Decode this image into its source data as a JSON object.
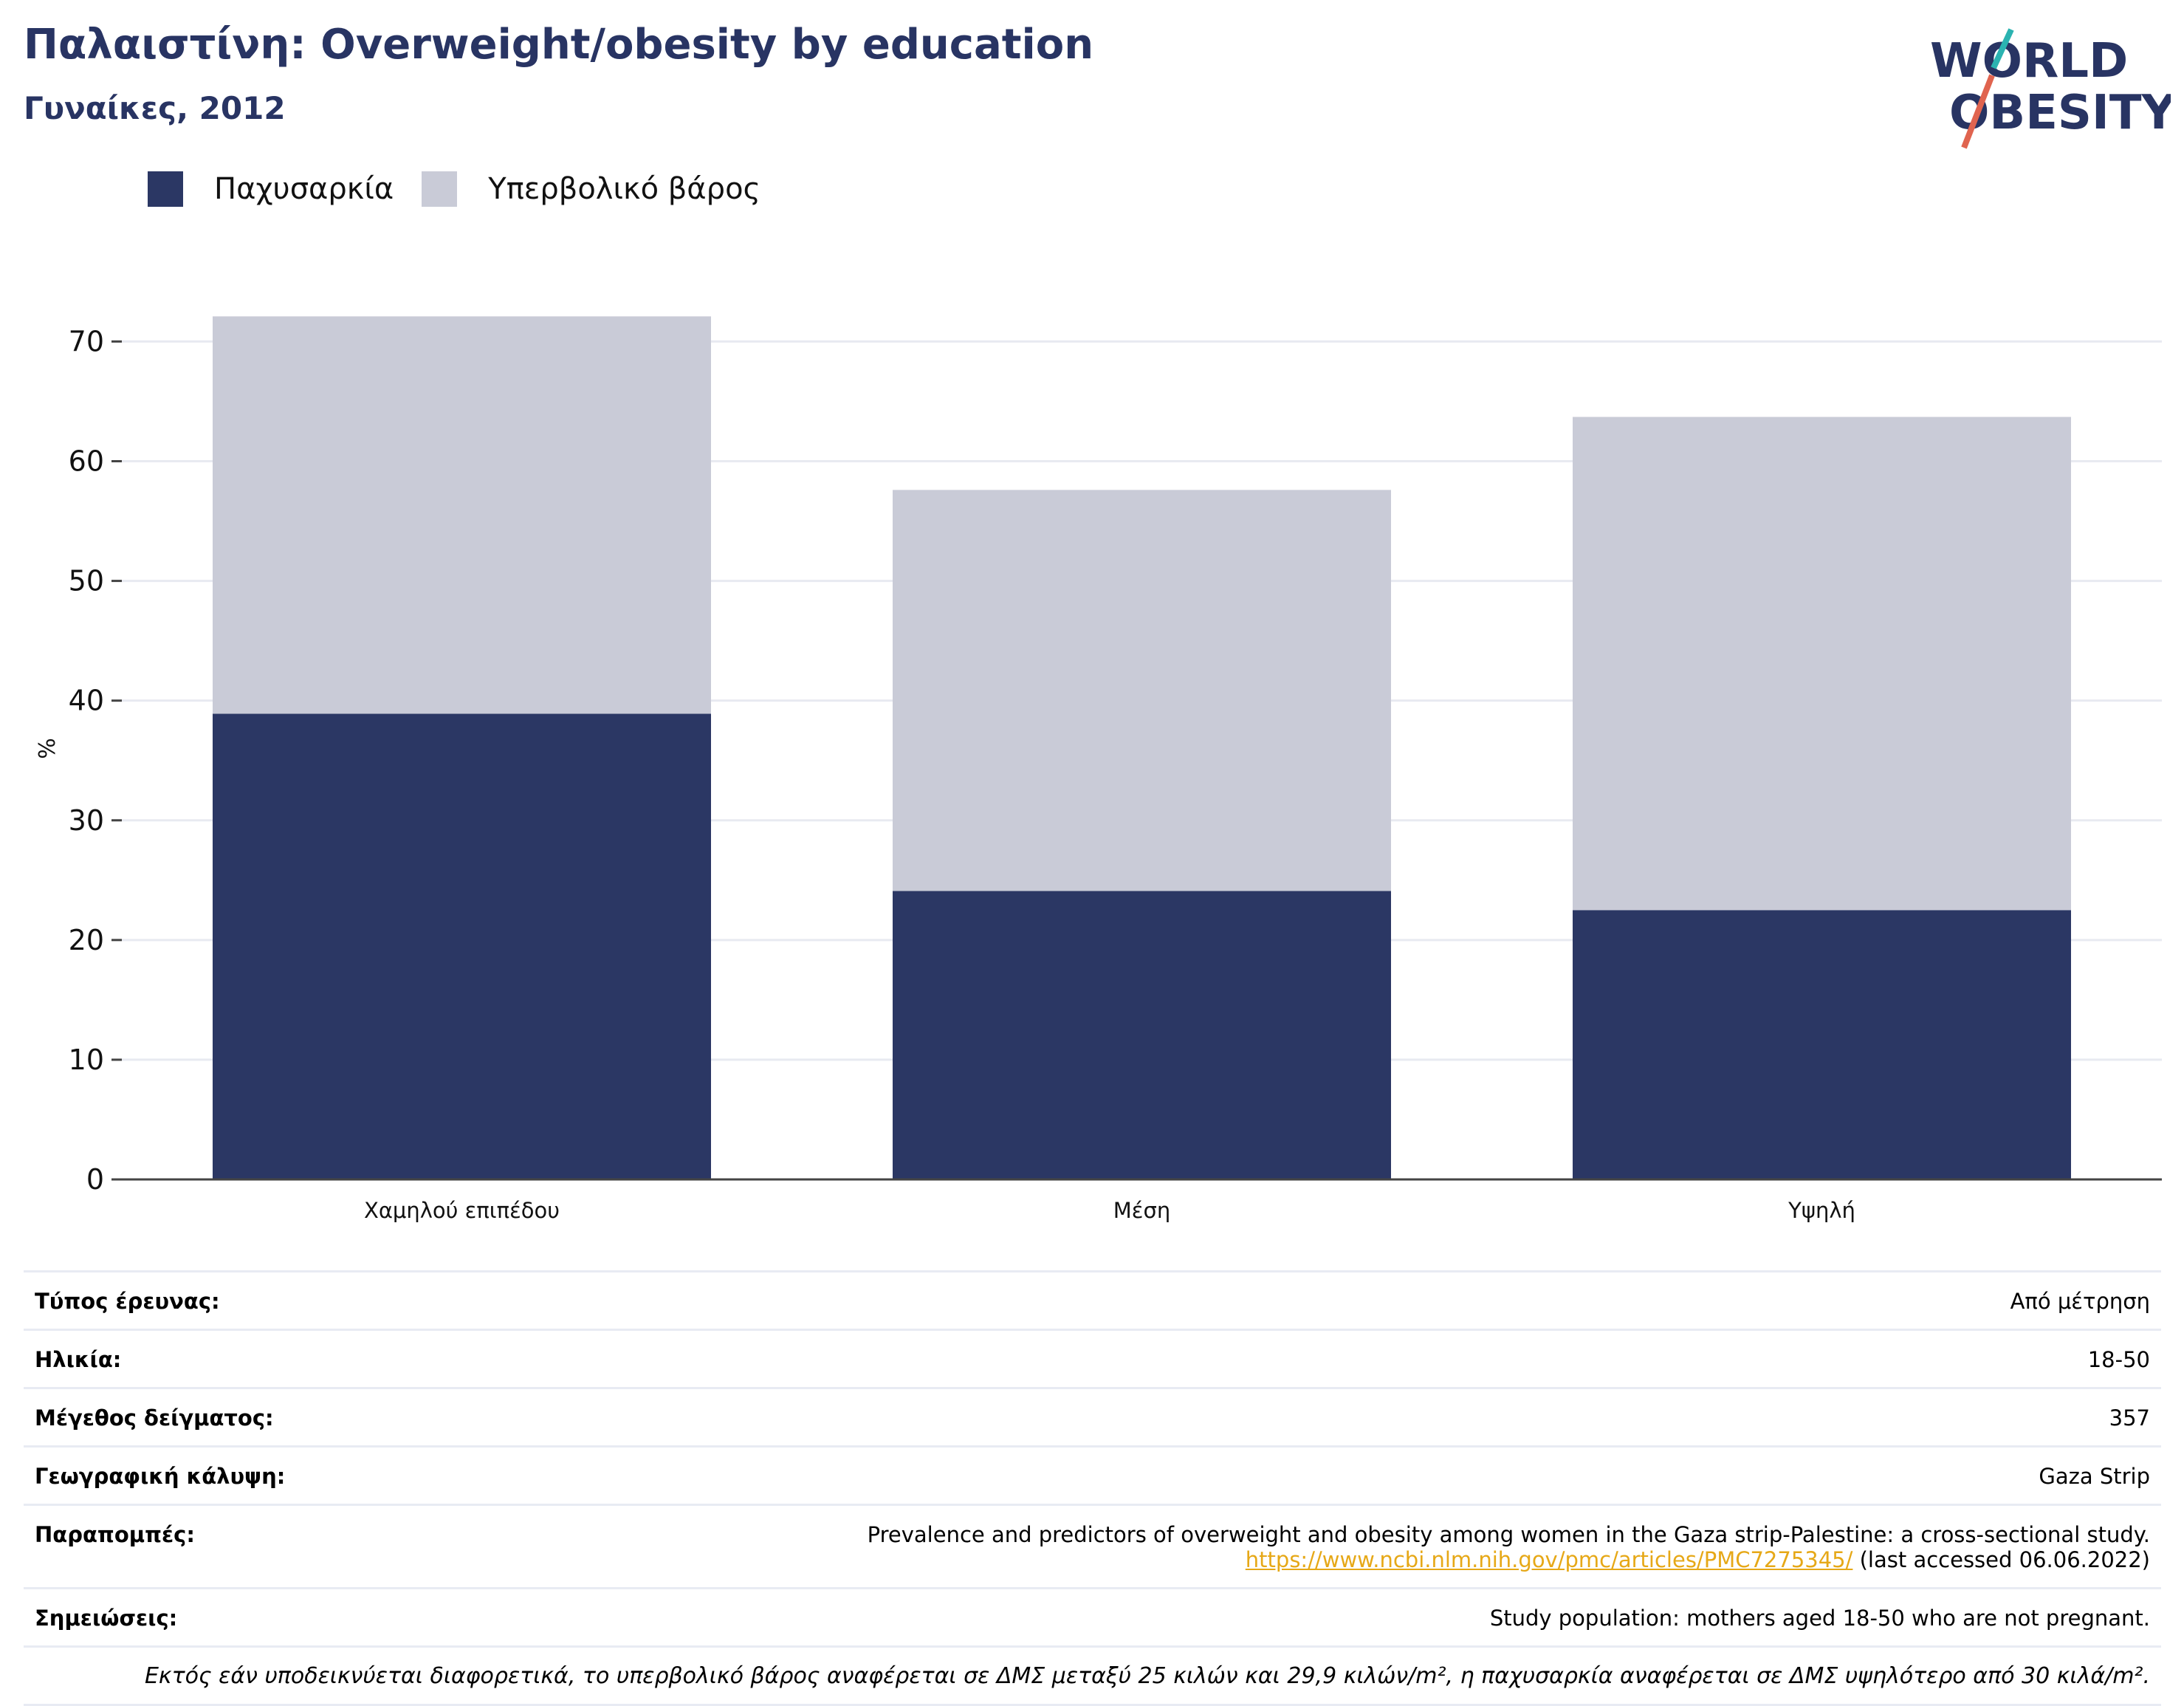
{
  "header": {
    "title": "Παλαιστίνη: Overweight/obesity by education",
    "subtitle": "Γυναίκες, 2012"
  },
  "logo": {
    "line1": "WORLD",
    "line2": "OBESITY",
    "brand_color": "#283463",
    "accent_teal": "#2bb3b1",
    "accent_red": "#e0644f"
  },
  "legend": {
    "obesity_label": "Παχυσαρκία",
    "overweight_label": "Υπερβολικό βάρος"
  },
  "colors": {
    "obesity": "#2b3764",
    "overweight": "#c9cbd7",
    "grid": "#e8eaf1",
    "axis": "#444444"
  },
  "chart_data": {
    "type": "bar",
    "stacked": true,
    "categories": [
      "Χαμηλού επιπέδου",
      "Μέση",
      "Υψηλή"
    ],
    "series": [
      {
        "name": "Παχυσαρκία",
        "values": [
          38.9,
          24.1,
          22.5
        ]
      },
      {
        "name": "Υπερβολικό βάρος",
        "values": [
          33.2,
          33.5,
          41.2
        ]
      }
    ],
    "ylabel": "%",
    "ylim": [
      0,
      72
    ],
    "yticks": [
      0,
      10,
      20,
      30,
      40,
      50,
      60,
      70
    ],
    "grid": true,
    "legend_position": "top-left"
  },
  "info": {
    "survey_type": {
      "label": "Τύπος έρευνας:",
      "value": "Από μέτρηση"
    },
    "age": {
      "label": "Ηλικία:",
      "value": "18-50"
    },
    "sample_size": {
      "label": "Μέγεθος δείγματος:",
      "value": "357"
    },
    "coverage": {
      "label": "Γεωγραφική κάλυψη:",
      "value": "Gaza Strip"
    },
    "references": {
      "label": "Παραπομπές:",
      "text": "Prevalence and predictors of overweight and obesity among women in the Gaza strip-Palestine: a cross-sectional study.",
      "link": "https://www.ncbi.nlm.nih.gov/pmc/articles/PMC7275345/",
      "accessed": " (last accessed 06.06.2022)"
    },
    "notes": {
      "label": "Σημειώσεις:",
      "value": "Study population: mothers aged 18-50 who are not pregnant."
    },
    "footnote": "Εκτός εάν υποδεικνύεται διαφορετικά, το υπερβολικό βάρος αναφέρεται σε ΔΜΣ μεταξύ 25 κιλών και 29,9 κιλών/m², η παχυσαρκία αναφέρεται σε ΔΜΣ υψηλότερο από 30 κιλά/m²."
  }
}
